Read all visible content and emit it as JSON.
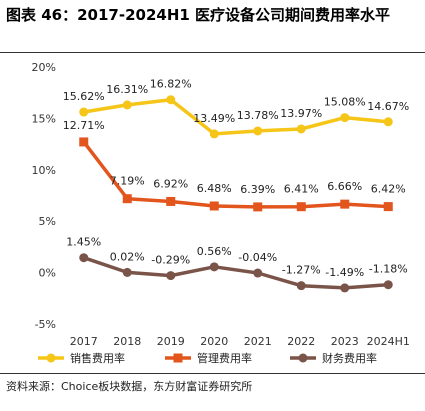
{
  "title": "图表 46：2017-2024H1 医疗设备公司期间费用率水平",
  "source": "资料来源：Choice板块数据，东方财富证券研究所",
  "chart_data": {
    "type": "line",
    "categories": [
      "2017",
      "2018",
      "2019",
      "2020",
      "2021",
      "2022",
      "2023",
      "2024H1"
    ],
    "ylim": [
      -5,
      20
    ],
    "yticks": [
      -5,
      0,
      5,
      10,
      15,
      20
    ],
    "ytick_labels": [
      "-5%",
      "0%",
      "5%",
      "10%",
      "15%",
      "20%"
    ],
    "grid": false,
    "legend_position": "bottom",
    "series": [
      {
        "name": "销售费用率",
        "color": "#F5C518",
        "marker": "circle",
        "values": [
          15.62,
          16.31,
          16.82,
          13.49,
          13.78,
          13.97,
          15.08,
          14.67
        ],
        "labels": [
          "15.62%",
          "16.31%",
          "16.82%",
          "13.49%",
          "13.78%",
          "13.97%",
          "15.08%",
          "14.67%"
        ]
      },
      {
        "name": "管理费用率",
        "color": "#E2551D",
        "marker": "square",
        "values": [
          12.71,
          7.19,
          6.92,
          6.48,
          6.39,
          6.41,
          6.66,
          6.42
        ],
        "labels": [
          "12.71%",
          "7.19%",
          "6.92%",
          "6.48%",
          "6.39%",
          "6.41%",
          "6.66%",
          "6.42%"
        ]
      },
      {
        "name": "财务费用率",
        "color": "#7A5448",
        "marker": "circle",
        "values": [
          1.45,
          0.02,
          -0.29,
          0.56,
          -0.04,
          -1.27,
          -1.49,
          -1.18
        ],
        "labels": [
          "1.45%",
          "0.02%",
          "-0.29%",
          "0.56%",
          "-0.04%",
          "-1.27%",
          "-1.49%",
          "-1.18%"
        ]
      }
    ]
  }
}
